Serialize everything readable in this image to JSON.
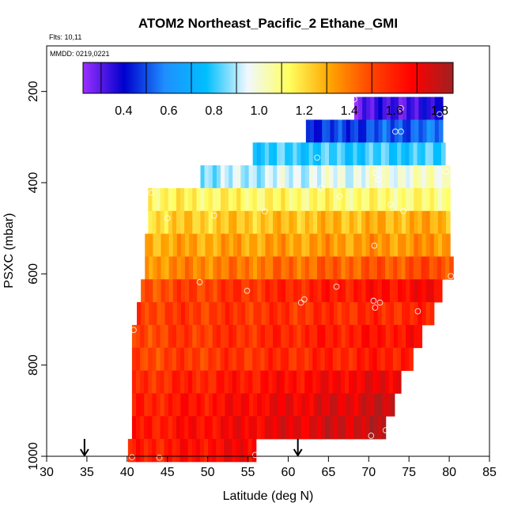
{
  "chart_data": {
    "type": "heatmap",
    "title": "ATOM2 Northeast_Pacific_2 Ethane_GMI",
    "flights_label": "Flts: 10,11",
    "mmdd_label": "MMDD: 0219,0221",
    "xlabel": "Latitude (deg N)",
    "ylabel": "PSXC (mbar)",
    "xlim": [
      30,
      85
    ],
    "ylim": [
      1000,
      100
    ],
    "x_ticks": [
      "30",
      "35",
      "40",
      "45",
      "50",
      "55",
      "60",
      "65",
      "70",
      "75",
      "80",
      "85"
    ],
    "y_ticks": [
      "200",
      "400",
      "600",
      "800",
      "1000"
    ],
    "colorbar": {
      "range": [
        0.22,
        1.86
      ],
      "ticks": [
        "0.4",
        "0.6",
        "0.8",
        "1.0",
        "1.2",
        "1.4",
        "1.6",
        "1.8"
      ],
      "colors": [
        "#9b30ff",
        "#0000cd",
        "#1e90ff",
        "#00bfff",
        "#f0f8ff",
        "#ffff60",
        "#ffa500",
        "#ff4500",
        "#ff0000",
        "#a02020"
      ]
    },
    "arrows_at_latitude": [
      34.7,
      61.2
    ],
    "bands": [
      {
        "p_top": 212,
        "p_bot": 262,
        "lat_start": 68.2,
        "lat_end": 79.2,
        "v_start": 0.3,
        "v_end": 0.35
      },
      {
        "p_top": 262,
        "p_bot": 312,
        "lat_start": 62.2,
        "lat_end": 79.2,
        "v_start": 0.45,
        "v_end": 0.55
      },
      {
        "p_top": 312,
        "p_bot": 362,
        "lat_start": 55.6,
        "lat_end": 79.5,
        "v_start": 0.8,
        "v_end": 0.8
      },
      {
        "p_top": 362,
        "p_bot": 412,
        "lat_start": 49.1,
        "lat_end": 80.1,
        "v_start": 0.88,
        "v_end": 1.02
      },
      {
        "p_top": 412,
        "p_bot": 462,
        "lat_start": 42.6,
        "lat_end": 80.1,
        "v_start": 1.15,
        "v_end": 1.1
      },
      {
        "p_top": 462,
        "p_bot": 512,
        "lat_start": 42.6,
        "lat_end": 80.1,
        "v_start": 1.22,
        "v_end": 1.3
      },
      {
        "p_top": 512,
        "p_bot": 562,
        "lat_start": 42.2,
        "lat_end": 80.1,
        "v_start": 1.3,
        "v_end": 1.35
      },
      {
        "p_top": 562,
        "p_bot": 612,
        "lat_start": 42.2,
        "lat_end": 80.5,
        "v_start": 1.35,
        "v_end": 1.5
      },
      {
        "p_top": 612,
        "p_bot": 662,
        "lat_start": 41.7,
        "lat_end": 79.1,
        "v_start": 1.48,
        "v_end": 1.68
      },
      {
        "p_top": 662,
        "p_bot": 712,
        "lat_start": 41.2,
        "lat_end": 78.1,
        "v_start": 1.52,
        "v_end": 1.58
      },
      {
        "p_top": 712,
        "p_bot": 762,
        "lat_start": 40.6,
        "lat_end": 76.6,
        "v_start": 1.5,
        "v_end": 1.65
      },
      {
        "p_top": 762,
        "p_bot": 812,
        "lat_start": 40.6,
        "lat_end": 75.5,
        "v_start": 1.5,
        "v_end": 1.62
      },
      {
        "p_top": 812,
        "p_bot": 862,
        "lat_start": 40.6,
        "lat_end": 74.0,
        "v_start": 1.55,
        "v_end": 1.72
      },
      {
        "p_top": 862,
        "p_bot": 912,
        "lat_start": 40.6,
        "lat_end": 73.2,
        "v_start": 1.58,
        "v_end": 1.78
      },
      {
        "p_top": 912,
        "p_bot": 962,
        "lat_start": 40.6,
        "lat_end": 72.1,
        "v_start": 1.6,
        "v_end": 1.8
      },
      {
        "p_top": 962,
        "p_bot": 1012,
        "lat_start": 40.1,
        "lat_end": 56.0,
        "v_start": 1.58,
        "v_end": 1.7
      }
    ],
    "sample_points": [
      {
        "lat": 68.2,
        "p": 217
      },
      {
        "lat": 74.0,
        "p": 237
      },
      {
        "lat": 78.8,
        "p": 250
      },
      {
        "lat": 73.3,
        "p": 288
      },
      {
        "lat": 74.0,
        "p": 288
      },
      {
        "lat": 63.6,
        "p": 345
      },
      {
        "lat": 79.6,
        "p": 375
      },
      {
        "lat": 70.8,
        "p": 378
      },
      {
        "lat": 71.2,
        "p": 393
      },
      {
        "lat": 64.1,
        "p": 412
      },
      {
        "lat": 66.4,
        "p": 430
      },
      {
        "lat": 72.7,
        "p": 448
      },
      {
        "lat": 74.3,
        "p": 462
      },
      {
        "lat": 43.0,
        "p": 422
      },
      {
        "lat": 57.1,
        "p": 463
      },
      {
        "lat": 45.0,
        "p": 478
      },
      {
        "lat": 50.8,
        "p": 472
      },
      {
        "lat": 70.7,
        "p": 538
      },
      {
        "lat": 49.0,
        "p": 618
      },
      {
        "lat": 54.9,
        "p": 637
      },
      {
        "lat": 66.0,
        "p": 628
      },
      {
        "lat": 80.2,
        "p": 605
      },
      {
        "lat": 62.0,
        "p": 656
      },
      {
        "lat": 61.6,
        "p": 663
      },
      {
        "lat": 70.6,
        "p": 659
      },
      {
        "lat": 71.4,
        "p": 663
      },
      {
        "lat": 70.8,
        "p": 674
      },
      {
        "lat": 76.1,
        "p": 682
      },
      {
        "lat": 40.8,
        "p": 723
      },
      {
        "lat": 70.3,
        "p": 955
      },
      {
        "lat": 72.1,
        "p": 943
      },
      {
        "lat": 55.9,
        "p": 997
      },
      {
        "lat": 40.6,
        "p": 1002
      },
      {
        "lat": 44.0,
        "p": 1003
      }
    ]
  }
}
